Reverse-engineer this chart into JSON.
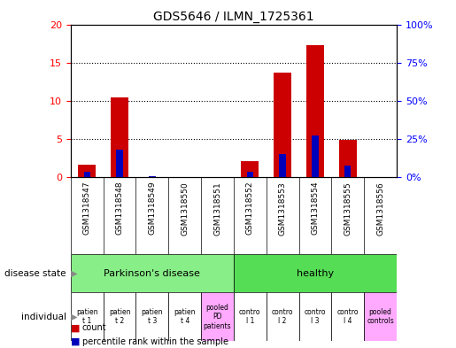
{
  "title": "GDS5646 / ILMN_1725361",
  "samples": [
    "GSM1318547",
    "GSM1318548",
    "GSM1318549",
    "GSM1318550",
    "GSM1318551",
    "GSM1318552",
    "GSM1318553",
    "GSM1318554",
    "GSM1318555",
    "GSM1318556"
  ],
  "count_values": [
    1.7,
    10.5,
    0.0,
    0.0,
    0.0,
    2.1,
    13.7,
    17.3,
    4.9,
    0.0
  ],
  "percentile_values": [
    3.5,
    18.0,
    1.0,
    0.0,
    0.0,
    4.0,
    15.0,
    27.5,
    7.5,
    0.0
  ],
  "ylim_left": [
    0,
    20
  ],
  "ylim_right": [
    0,
    100
  ],
  "yticks_left": [
    0,
    5,
    10,
    15,
    20
  ],
  "yticks_right": [
    0,
    25,
    50,
    75,
    100
  ],
  "yticklabels_left": [
    "0",
    "5",
    "10",
    "15",
    "20"
  ],
  "yticklabels_right": [
    "0%",
    "25%",
    "50%",
    "75%",
    "100%"
  ],
  "disease_state_groups": [
    {
      "label": "Parkinson's disease",
      "start": 0,
      "end": 5,
      "color": "#88EE88"
    },
    {
      "label": "healthy",
      "start": 5,
      "end": 10,
      "color": "#55DD55"
    }
  ],
  "individual_labels": [
    [
      "patien",
      "t 1"
    ],
    [
      "patien",
      "t 2"
    ],
    [
      "patien",
      "t 3"
    ],
    [
      "patien",
      "t 4"
    ],
    [
      "pooled",
      "PD",
      "patients"
    ],
    [
      "contro",
      "l 1"
    ],
    [
      "contro",
      "l 2"
    ],
    [
      "contro",
      "l 3"
    ],
    [
      "contro",
      "l 4"
    ],
    [
      "pooled",
      "controls"
    ]
  ],
  "individual_colors": [
    "#ffffff",
    "#ffffff",
    "#ffffff",
    "#ffffff",
    "#ffaaff",
    "#ffffff",
    "#ffffff",
    "#ffffff",
    "#ffffff",
    "#ffaaff"
  ],
  "bar_color_red": "#CC0000",
  "bar_color_blue": "#0000BB",
  "bar_width": 0.55,
  "blue_bar_width": 0.2,
  "grid_color": "black",
  "label_disease_state": "disease state",
  "label_individual": "individual",
  "legend_count": "count",
  "legend_percentile": "percentile rank within the sample",
  "plot_bg_color": "#FFFFFF",
  "bar_area_color": "#DDDDDD",
  "tick_label_fontsize": 8,
  "title_fontsize": 10
}
